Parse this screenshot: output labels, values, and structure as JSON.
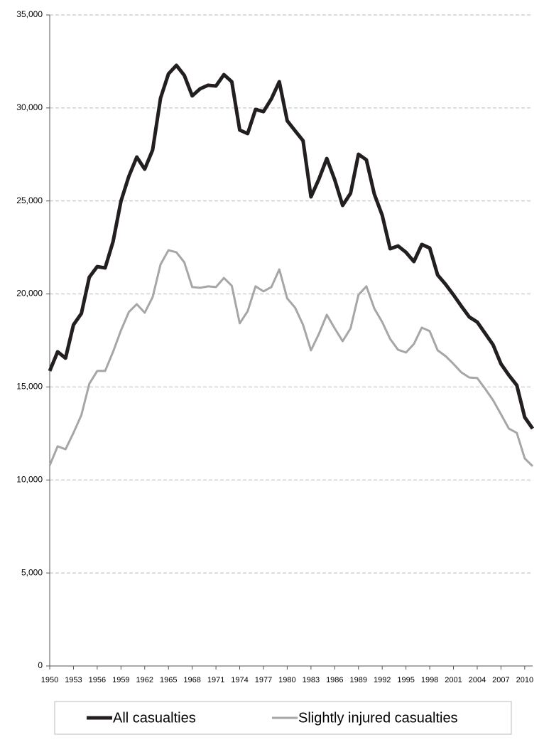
{
  "chart_data": {
    "type": "line",
    "x": [
      1950,
      1951,
      1952,
      1953,
      1954,
      1955,
      1956,
      1957,
      1958,
      1959,
      1960,
      1961,
      1962,
      1963,
      1964,
      1965,
      1966,
      1967,
      1968,
      1969,
      1970,
      1971,
      1972,
      1973,
      1974,
      1975,
      1976,
      1977,
      1978,
      1979,
      1980,
      1981,
      1982,
      1983,
      1984,
      1985,
      1986,
      1987,
      1988,
      1989,
      1990,
      1991,
      1992,
      1993,
      1994,
      1995,
      1996,
      1997,
      1998,
      1999,
      2000,
      2001,
      2002,
      2003,
      2004,
      2005,
      2006,
      2007,
      2008,
      2009,
      2010,
      2011
    ],
    "series": [
      {
        "name": "All casualties",
        "color": "#231f20",
        "values": [
          15860,
          16890,
          16550,
          18340,
          18950,
          20900,
          21470,
          21400,
          22810,
          24990,
          26330,
          27360,
          26710,
          27740,
          30530,
          31830,
          32290,
          31750,
          30650,
          31030,
          31220,
          31180,
          31790,
          31410,
          28810,
          28620,
          29920,
          29800,
          30490,
          31410,
          29310,
          28770,
          28240,
          25220,
          26170,
          27280,
          26140,
          24760,
          25410,
          27510,
          27210,
          25370,
          24230,
          22430,
          22580,
          22240,
          21740,
          22660,
          22470,
          21020,
          20520,
          19950,
          19340,
          18760,
          18490,
          17880,
          17270,
          16240,
          15630,
          15090,
          13370,
          12760
        ]
      },
      {
        "name": "Slightly injured casualties",
        "color": "#a6a6a6",
        "values": [
          10780,
          11810,
          11650,
          12530,
          13490,
          15170,
          15860,
          15860,
          16890,
          18040,
          19030,
          19450,
          18990,
          19830,
          21590,
          22350,
          22240,
          21700,
          20370,
          20330,
          20410,
          20370,
          20860,
          20440,
          18420,
          19070,
          20410,
          20140,
          20370,
          21320,
          19760,
          19260,
          18340,
          16970,
          17850,
          18880,
          18150,
          17460,
          18150,
          19950,
          20410,
          19220,
          18490,
          17580,
          17000,
          16850,
          17310,
          18190,
          18000,
          16970,
          16660,
          16240,
          15780,
          15510,
          15480,
          14900,
          14290,
          13530,
          12760,
          12530,
          11160,
          10740
        ]
      }
    ],
    "xlim": [
      1950,
      2011
    ],
    "xticks": [
      1950,
      1953,
      1956,
      1959,
      1962,
      1965,
      1968,
      1971,
      1974,
      1977,
      1980,
      1983,
      1986,
      1989,
      1992,
      1995,
      1998,
      2001,
      2004,
      2007,
      2010
    ],
    "ylim": [
      0,
      35000
    ],
    "yticks": [
      0,
      {
        "value": 5000,
        "label": "5,000"
      },
      {
        "value": 10000,
        "label": "10,000"
      },
      {
        "value": 15000,
        "label": "15,000"
      },
      {
        "value": 20000,
        "label": "20,000"
      },
      {
        "value": 25000,
        "label": "25,000"
      },
      {
        "value": 30000,
        "label": "30,000"
      },
      {
        "value": 35000,
        "label": "35,000"
      }
    ],
    "grid": true,
    "legend": "bottom"
  }
}
